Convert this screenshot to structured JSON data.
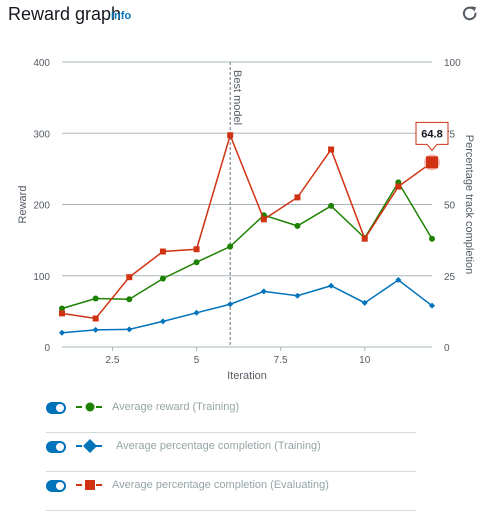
{
  "header": {
    "title": "Reward graph",
    "info_label": "Info",
    "refresh_icon": "refresh-icon"
  },
  "chart_data": {
    "type": "line",
    "xlabel": "Iteration",
    "ylabel_left": "Reward",
    "ylabel_right": "Percentage track completion",
    "xlim": [
      1,
      12
    ],
    "ylim_left": [
      0,
      400
    ],
    "ylim_right": [
      0,
      100
    ],
    "x_ticks": [
      2.5,
      5,
      7.5,
      10
    ],
    "x_tick_labels": [
      "2.5",
      "5",
      "7.5",
      "10"
    ],
    "y_left_ticks": [
      0,
      100,
      200,
      300,
      400
    ],
    "y_right_ticks": [
      0,
      25,
      50,
      75,
      100
    ],
    "grid": true,
    "annotation": {
      "label": "Best model",
      "x": 6
    },
    "tooltip": {
      "series": 2,
      "x": 12,
      "value": "64.8"
    },
    "x": [
      1,
      2,
      3,
      4,
      5,
      6,
      7,
      8,
      9,
      10,
      11,
      12
    ],
    "series": [
      {
        "name": "Average reward (Training)",
        "axis": "left",
        "color": "#1d8102",
        "marker": "circle",
        "values": [
          54,
          68,
          67,
          96,
          119,
          141,
          185,
          170,
          198,
          153,
          231,
          152
        ]
      },
      {
        "name": "Average percentage completion (Training)",
        "axis": "right",
        "color": "#0073bb",
        "marker": "diamond",
        "values": [
          5,
          6,
          6.2,
          9,
          12,
          15,
          19.5,
          18,
          21.5,
          15.5,
          23.5,
          14.5
        ]
      },
      {
        "name": "Average percentage completion (Evaluating)",
        "axis": "right",
        "color": "#d13212",
        "marker": "square",
        "values": [
          11.8,
          10,
          24.5,
          33.5,
          34.3,
          74.3,
          44.8,
          52.5,
          69.3,
          38,
          56.3,
          64.8
        ]
      }
    ]
  },
  "legend": [
    {
      "label": "Average reward (Training)",
      "color": "#1d8102",
      "marker": "circle",
      "enabled": true
    },
    {
      "label": "Average percentage completion (Training)",
      "color": "#0073bb",
      "marker": "diamond",
      "enabled": true
    },
    {
      "label": "Average percentage completion (Evaluating)",
      "color": "#d13212",
      "marker": "square",
      "enabled": true
    }
  ]
}
